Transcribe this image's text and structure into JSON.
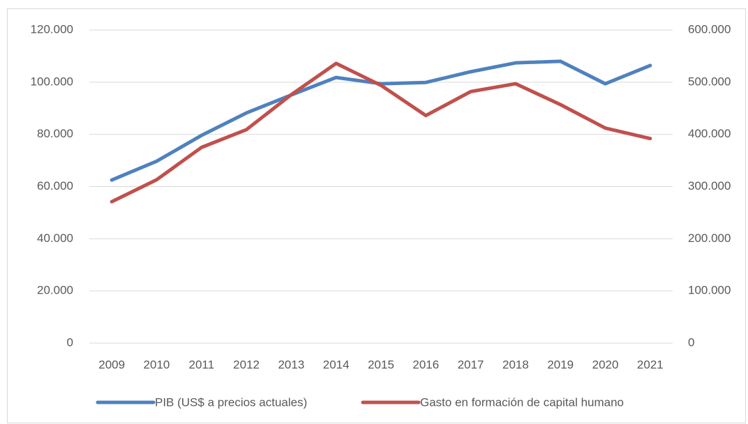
{
  "chart_data": {
    "type": "line",
    "categories": [
      "2009",
      "2010",
      "2011",
      "2012",
      "2013",
      "2014",
      "2015",
      "2016",
      "2017",
      "2018",
      "2019",
      "2020",
      "2021"
    ],
    "series": [
      {
        "name": "PIB (US$ a precios actuales)",
        "color": "#4f81bd",
        "values": [
          62500,
          69700,
          79600,
          88200,
          95100,
          101800,
          99400,
          99900,
          104000,
          107400,
          108000,
          99400,
          106400
        ]
      },
      {
        "name": "Gasto en formación de capital humano",
        "color": "#c0504d",
        "axis": "y2",
        "values": [
          271000,
          313000,
          375000,
          409000,
          476000,
          536000,
          494000,
          436000,
          482000,
          497000,
          457000,
          412000,
          392000
        ]
      }
    ],
    "ylim": [
      0,
      120000
    ],
    "yticks": [
      0,
      {
        "value": 20000,
        "label": "20.000"
      },
      {
        "value": 40000,
        "label": "40.000"
      },
      {
        "value": 60000,
        "label": "60.000"
      },
      {
        "value": 80000,
        "label": "80.000"
      },
      {
        "value": 100000,
        "label": "100.000"
      },
      {
        "value": 120000,
        "label": "120.000"
      }
    ],
    "y2lim": [
      0,
      600000
    ],
    "y2ticks": [
      0,
      {
        "value": 100000,
        "label": "100.000"
      },
      {
        "value": 200000,
        "label": "200.000"
      },
      {
        "value": 300000,
        "label": "300.000"
      },
      {
        "value": 400000,
        "label": "400.000"
      },
      {
        "value": 500000,
        "label": "500.000"
      },
      {
        "value": 600000,
        "label": "600.000"
      }
    ],
    "grid": true,
    "legend": "bottom"
  }
}
